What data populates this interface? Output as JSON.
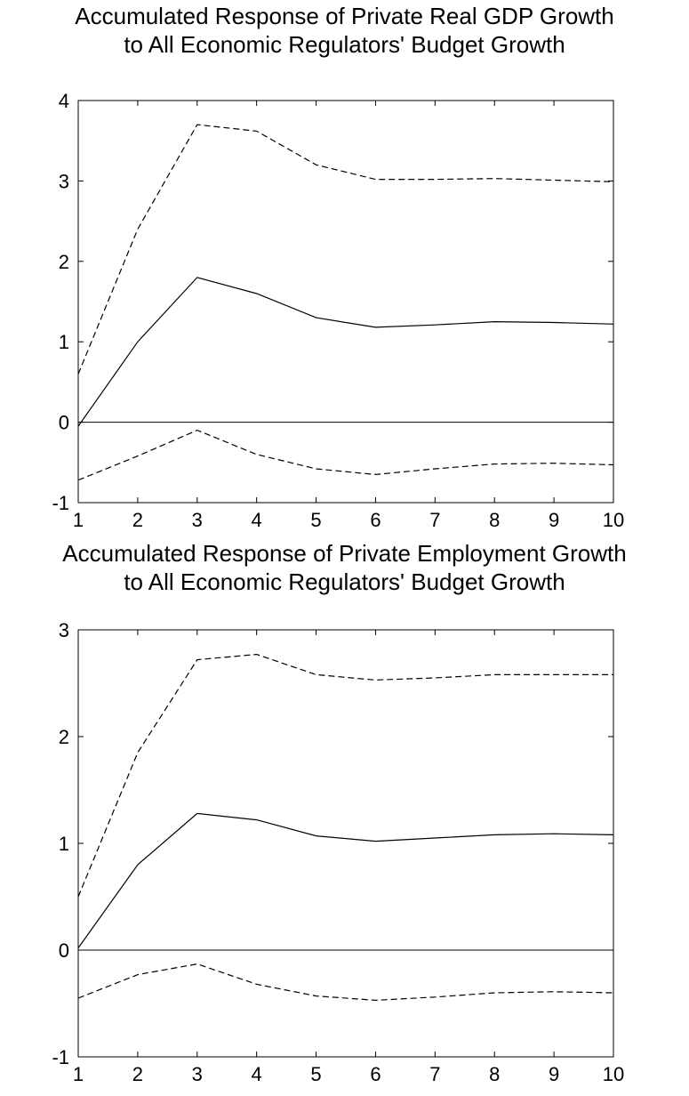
{
  "chart_data": [
    {
      "type": "line",
      "title_line1": "Accumulated Response of Private Real GDP Growth",
      "title_line2": "to All Economic Regulators' Budget Growth",
      "x": [
        1,
        2,
        3,
        4,
        5,
        6,
        7,
        8,
        9,
        10
      ],
      "xlim": [
        1,
        10
      ],
      "ylim": [
        -1,
        4
      ],
      "yticks": [
        -1,
        0,
        1,
        2,
        3,
        4
      ],
      "series": [
        {
          "style": "solid",
          "values": [
            -0.05,
            1.0,
            1.8,
            1.6,
            1.3,
            1.18,
            1.21,
            1.25,
            1.24,
            1.22
          ]
        },
        {
          "style": "dashed",
          "values": [
            0.6,
            2.4,
            3.7,
            3.62,
            3.2,
            3.02,
            3.02,
            3.03,
            3.01,
            2.99
          ]
        },
        {
          "style": "dashed",
          "values": [
            -0.72,
            -0.42,
            -0.1,
            -0.4,
            -0.58,
            -0.65,
            -0.58,
            -0.52,
            -0.51,
            -0.53
          ]
        }
      ]
    },
    {
      "type": "line",
      "title_line1": "Accumulated Response of Private Employment Growth",
      "title_line2": "to All Economic Regulators' Budget Growth",
      "x": [
        1,
        2,
        3,
        4,
        5,
        6,
        7,
        8,
        9,
        10
      ],
      "xlim": [
        1,
        10
      ],
      "ylim": [
        -1,
        3
      ],
      "yticks": [
        -1,
        0,
        1,
        2,
        3
      ],
      "series": [
        {
          "style": "solid",
          "values": [
            0.02,
            0.8,
            1.28,
            1.22,
            1.07,
            1.02,
            1.05,
            1.08,
            1.09,
            1.08
          ]
        },
        {
          "style": "dashed",
          "values": [
            0.5,
            1.85,
            2.72,
            2.77,
            2.58,
            2.53,
            2.55,
            2.58,
            2.58,
            2.58
          ]
        },
        {
          "style": "dashed",
          "values": [
            -0.45,
            -0.23,
            -0.13,
            -0.32,
            -0.43,
            -0.47,
            -0.44,
            -0.4,
            -0.39,
            -0.4
          ]
        }
      ]
    }
  ]
}
